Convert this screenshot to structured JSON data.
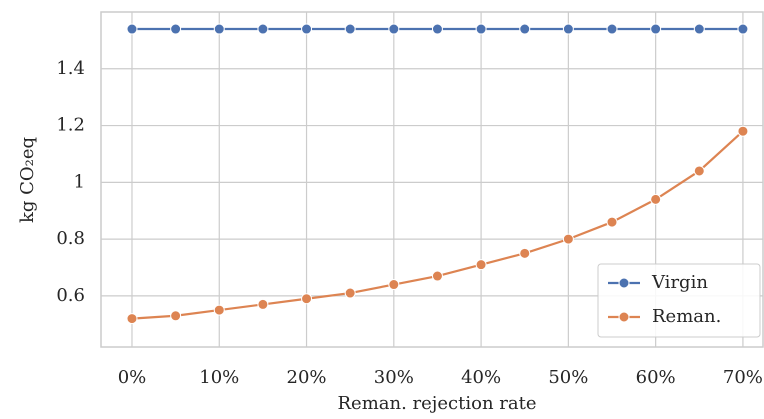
{
  "chart_data": {
    "type": "line",
    "xlabel": "Reman. rejection rate",
    "ylabel": "kg CO₂eq",
    "x": [
      0,
      5,
      10,
      15,
      20,
      25,
      30,
      35,
      40,
      45,
      50,
      55,
      60,
      65,
      70
    ],
    "series": [
      {
        "name": "Virgin",
        "color": "#4c72b0",
        "values": [
          1.54,
          1.54,
          1.54,
          1.54,
          1.54,
          1.54,
          1.54,
          1.54,
          1.54,
          1.54,
          1.54,
          1.54,
          1.54,
          1.54,
          1.54
        ]
      },
      {
        "name": "Reman.",
        "color": "#dd8452",
        "values": [
          0.52,
          0.53,
          0.55,
          0.57,
          0.59,
          0.61,
          0.64,
          0.67,
          0.71,
          0.75,
          0.8,
          0.86,
          0.94,
          1.04,
          1.18
        ]
      }
    ],
    "xlim": [
      -3.55,
      72.3
    ],
    "xticks": [
      {
        "value": 0,
        "label": "0%"
      },
      {
        "value": 10,
        "label": "10%"
      },
      {
        "value": 20,
        "label": "20%"
      },
      {
        "value": 30,
        "label": "30%"
      },
      {
        "value": 40,
        "label": "40%"
      },
      {
        "value": 50,
        "label": "50%"
      },
      {
        "value": 60,
        "label": "60%"
      },
      {
        "value": 70,
        "label": "70%"
      }
    ],
    "ylim": [
      0.42,
      1.6
    ],
    "yticks": [
      0.6,
      0.8,
      1.0,
      1.2,
      1.4
    ],
    "grid": true,
    "legend": "lower right"
  }
}
